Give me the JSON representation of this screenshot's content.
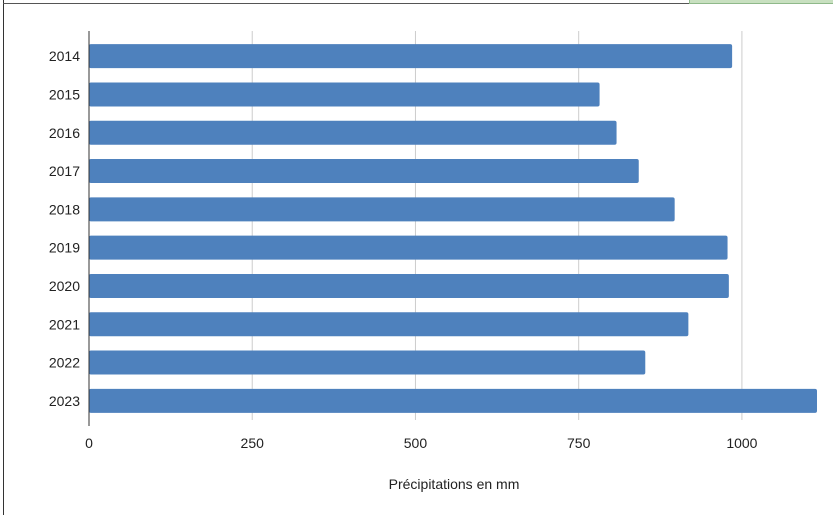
{
  "chart_data": {
    "type": "bar",
    "orientation": "horizontal",
    "categories": [
      "2014",
      "2015",
      "2016",
      "2017",
      "2018",
      "2019",
      "2020",
      "2021",
      "2022",
      "2023"
    ],
    "values": [
      985,
      782,
      808,
      842,
      897,
      978,
      980,
      918,
      852,
      1115
    ],
    "xlabel": "Précipitations en mm",
    "ylabel": "",
    "xlim": [
      0,
      1115
    ],
    "xticks": [
      "0",
      "250",
      "500",
      "750",
      "1000"
    ],
    "xtick_values": [
      0,
      250,
      500,
      750,
      1000
    ],
    "grid": "vertical",
    "bar_color": "#4e81bd"
  }
}
